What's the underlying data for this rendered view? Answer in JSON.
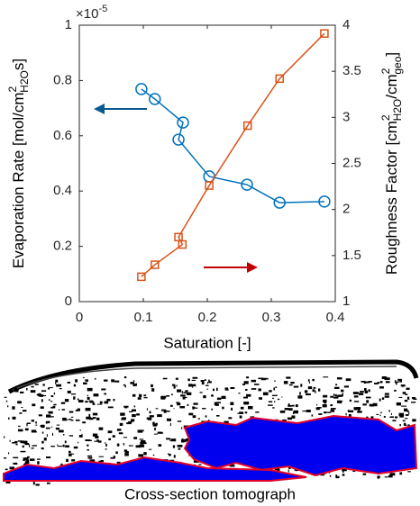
{
  "chart_data": {
    "type": "line",
    "y_multiplier": {
      "base": "×10",
      "exponent": "-5"
    },
    "x_label": "Saturation [-]",
    "y_label": {
      "text": "Evaporation Rate [mol/cm",
      "sup": "2",
      "sub": "H2O",
      "tail": "s]"
    },
    "y2_label": {
      "text": "Roughness Factor [cm",
      "sup": "2",
      "sub": "H2O",
      "mid": "/cm",
      "sup2": "2",
      "sub2": "geo",
      "tail": "]"
    },
    "xlim": [
      0,
      0.4
    ],
    "xticks": [
      0,
      0.1,
      0.2,
      0.3,
      0.4
    ],
    "ylim": [
      0,
      1
    ],
    "yticks": [
      0,
      0.2,
      0.4,
      0.6,
      0.8,
      1
    ],
    "y2lim": [
      1,
      4
    ],
    "y2ticks": [
      1,
      1.5,
      2,
      2.5,
      3,
      3.5,
      4
    ],
    "grid": false,
    "series": [
      {
        "name": "Evaporation Rate",
        "color": "#0072bd",
        "marker": "circle",
        "x": [
          0.097,
          0.118,
          0.162,
          0.155,
          0.203,
          0.262,
          0.313,
          0.383
        ],
        "values": [
          0.769,
          0.733,
          0.648,
          0.586,
          0.453,
          0.423,
          0.358,
          0.362
        ]
      },
      {
        "name": "Roughness Factor",
        "color": "#d95319",
        "marker": "square",
        "axis": "y2",
        "x": [
          0.097,
          0.118,
          0.161,
          0.155,
          0.203,
          0.263,
          0.313,
          0.383
        ],
        "values": [
          1.27,
          1.4,
          1.62,
          1.7,
          2.26,
          2.91,
          3.42,
          3.91
        ]
      }
    ],
    "image_caption": "Cross-section tomograph"
  }
}
